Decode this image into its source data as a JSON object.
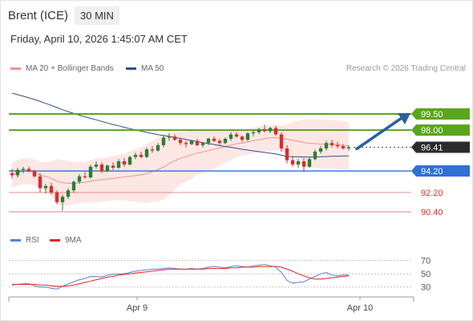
{
  "header": {
    "title": "Brent (ICE)",
    "timeframe": "30 MIN"
  },
  "timestamp": "Friday, April 10, 2026 1:45:07 AM CET",
  "legend": {
    "bollinger": {
      "label": "MA 20 + Bollinger Bands",
      "color": "#f4928c"
    },
    "ma50": {
      "label": "MA 50",
      "color": "#2f4f8f"
    },
    "credit": "Research © 2026 Trading Central"
  },
  "rsi_legend": {
    "rsi": {
      "label": "RSI",
      "color": "#5b7fd6"
    },
    "ma9": {
      "label": "9MA",
      "color": "#e02424"
    }
  },
  "colors": {
    "resistance": "#5aa51d",
    "pivot": "#2f6fd6",
    "support": "#e46b6b",
    "bull": "#2e7d32",
    "bear": "#d32f2f",
    "band_fill": "#fde3e1",
    "arrow": "#2a5f9e"
  },
  "chart_data": [
    {
      "type": "candlestick",
      "x_ticks": [
        "Apr 9",
        "Apr 10"
      ],
      "ylim": [
        89.8,
        100.4
      ],
      "levels": [
        {
          "label": "99.50",
          "value": 99.5,
          "kind": "resistance"
        },
        {
          "label": "98.00",
          "value": 98.0,
          "kind": "resistance"
        },
        {
          "label": "96.41",
          "value": 96.41,
          "kind": "last"
        },
        {
          "label": "94.20",
          "value": 94.2,
          "kind": "pivot"
        },
        {
          "label": "92.20",
          "value": 92.2,
          "kind": "support"
        },
        {
          "label": "90.40",
          "value": 90.4,
          "kind": "support"
        }
      ],
      "candles": [
        [
          94.0,
          94.4,
          93.5,
          93.8
        ],
        [
          93.8,
          94.5,
          93.6,
          94.3
        ],
        [
          94.3,
          94.6,
          94.0,
          94.4
        ],
        [
          94.4,
          94.6,
          94.1,
          94.2
        ],
        [
          94.2,
          94.3,
          93.6,
          93.7
        ],
        [
          93.7,
          94.0,
          92.2,
          92.6
        ],
        [
          92.6,
          93.0,
          92.1,
          92.8
        ],
        [
          92.8,
          93.1,
          92.0,
          92.2
        ],
        [
          92.2,
          92.4,
          91.1,
          91.3
        ],
        [
          91.3,
          92.0,
          90.5,
          91.8
        ],
        [
          91.8,
          92.6,
          91.6,
          92.4
        ],
        [
          92.4,
          93.3,
          92.2,
          93.2
        ],
        [
          93.2,
          93.9,
          93.0,
          93.7
        ],
        [
          93.7,
          94.1,
          93.5,
          93.6
        ],
        [
          93.6,
          94.8,
          93.5,
          94.6
        ],
        [
          94.6,
          95.1,
          94.4,
          94.8
        ],
        [
          94.8,
          95.0,
          94.0,
          94.2
        ],
        [
          94.2,
          94.8,
          94.1,
          94.7
        ],
        [
          94.7,
          95.0,
          94.3,
          94.5
        ],
        [
          94.5,
          95.3,
          94.4,
          95.1
        ],
        [
          95.1,
          95.4,
          94.6,
          94.8
        ],
        [
          94.8,
          95.6,
          94.7,
          95.5
        ],
        [
          95.5,
          95.9,
          95.3,
          95.7
        ],
        [
          95.7,
          96.0,
          95.4,
          95.5
        ],
        [
          95.5,
          96.4,
          95.4,
          96.2
        ],
        [
          96.2,
          96.5,
          95.9,
          96.1
        ],
        [
          96.1,
          96.8,
          96.0,
          96.6
        ],
        [
          96.6,
          97.5,
          96.4,
          97.3
        ],
        [
          97.3,
          97.7,
          97.0,
          97.4
        ],
        [
          97.4,
          97.6,
          97.0,
          97.1
        ],
        [
          97.1,
          97.3,
          96.6,
          96.8
        ],
        [
          96.8,
          97.0,
          96.4,
          96.7
        ],
        [
          96.7,
          97.1,
          96.6,
          97.0
        ],
        [
          97.0,
          97.2,
          96.5,
          96.6
        ],
        [
          96.6,
          96.9,
          96.4,
          96.8
        ],
        [
          96.8,
          97.3,
          96.6,
          97.2
        ],
        [
          97.2,
          97.4,
          96.9,
          97.0
        ],
        [
          97.0,
          97.2,
          96.6,
          96.8
        ],
        [
          96.8,
          97.3,
          96.7,
          97.2
        ],
        [
          97.2,
          97.8,
          97.0,
          97.6
        ],
        [
          97.6,
          97.8,
          97.3,
          97.4
        ],
        [
          97.4,
          97.5,
          96.9,
          97.1
        ],
        [
          97.1,
          97.8,
          97.0,
          97.7
        ],
        [
          97.7,
          98.0,
          97.4,
          97.8
        ],
        [
          97.8,
          98.2,
          97.6,
          98.1
        ],
        [
          98.1,
          98.5,
          97.8,
          97.9
        ],
        [
          97.9,
          98.3,
          97.7,
          98.2
        ],
        [
          98.2,
          98.4,
          97.5,
          97.6
        ],
        [
          97.6,
          97.8,
          96.0,
          96.3
        ],
        [
          96.3,
          96.6,
          94.9,
          95.2
        ],
        [
          95.2,
          95.6,
          94.6,
          94.8
        ],
        [
          94.8,
          95.3,
          94.5,
          95.1
        ],
        [
          95.1,
          95.4,
          94.1,
          94.6
        ],
        [
          94.6,
          95.5,
          94.5,
          95.3
        ],
        [
          95.3,
          96.2,
          95.2,
          96.0
        ],
        [
          96.0,
          96.5,
          95.8,
          96.3
        ],
        [
          96.3,
          97.0,
          96.1,
          96.8
        ],
        [
          96.8,
          97.1,
          96.4,
          96.6
        ],
        [
          96.6,
          96.9,
          96.3,
          96.5
        ],
        [
          96.5,
          96.7,
          96.2,
          96.3
        ],
        [
          96.3,
          96.6,
          96.1,
          96.41
        ]
      ]
    },
    {
      "type": "line",
      "series_names": [
        "RSI",
        "9MA"
      ],
      "ylevels": [
        {
          "label": "70",
          "value": 70
        },
        {
          "label": "50",
          "value": 50
        },
        {
          "label": "30",
          "value": 30
        }
      ],
      "ylim": [
        20,
        78
      ],
      "rsi": [
        33,
        34,
        35,
        35,
        32,
        30,
        30,
        28,
        27,
        31,
        35,
        38,
        41,
        43,
        46,
        46,
        45,
        48,
        49,
        50,
        50,
        52,
        54,
        55,
        56,
        57,
        57,
        58,
        59,
        58,
        57,
        57,
        58,
        57,
        58,
        60,
        61,
        60,
        59,
        61,
        62,
        61,
        60,
        62,
        63,
        64,
        62,
        60,
        52,
        40,
        36,
        37,
        38,
        42,
        46,
        50,
        52,
        48,
        47,
        48,
        48
      ],
      "ma9": [
        34,
        34,
        34,
        34,
        34,
        33,
        33,
        32,
        31,
        31,
        32,
        33,
        35,
        37,
        39,
        41,
        43,
        45,
        46,
        48,
        49,
        50,
        51,
        52,
        53,
        54,
        55,
        56,
        57,
        57,
        57,
        57,
        57,
        57,
        57,
        58,
        58,
        58,
        58,
        59,
        59,
        60,
        60,
        60,
        61,
        61,
        61,
        61,
        60,
        57,
        54,
        50,
        47,
        44,
        42,
        42,
        43,
        44,
        45,
        46,
        47
      ]
    }
  ]
}
